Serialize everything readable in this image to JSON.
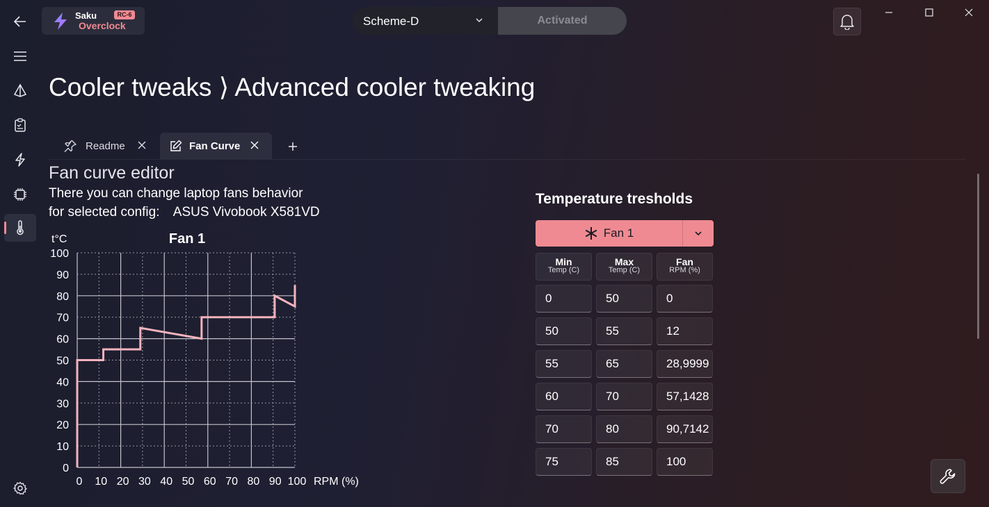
{
  "app": {
    "name": "Saku",
    "subtitle": "Overclock",
    "version_badge": "RC-6"
  },
  "header": {
    "scheme_value": "Scheme-D",
    "activated_label": "Activated"
  },
  "page": {
    "title": "Cooler tweaks ⟩ Advanced cooler tweaking"
  },
  "tabs": [
    {
      "label": "Readme",
      "icon": "pin-icon",
      "active": false
    },
    {
      "label": "Fan Curve",
      "icon": "edit-icon",
      "active": true
    }
  ],
  "editor": {
    "title": "Fan curve editor",
    "description_line1": "There you can change laptop fans behavior",
    "description_prefix": "for selected config:",
    "config_name": "ASUS Vivobook X581VD"
  },
  "chart_data": {
    "type": "line",
    "title": "Fan 1",
    "xlabel": "RPM (%)",
    "ylabel": "t°C",
    "xlim": [
      0,
      100
    ],
    "ylim": [
      0,
      100
    ],
    "x_ticks": [
      0,
      10,
      20,
      30,
      40,
      50,
      60,
      70,
      80,
      90,
      100
    ],
    "y_ticks": [
      0,
      10,
      20,
      30,
      40,
      50,
      60,
      70,
      80,
      90,
      100
    ],
    "grid": true,
    "line_color": "#f4b3bd",
    "series": [
      {
        "points": [
          [
            0,
            0
          ],
          [
            0,
            50
          ],
          [
            12,
            50
          ],
          [
            12,
            55
          ],
          [
            29,
            55
          ],
          [
            29,
            65
          ],
          [
            57.1428,
            60
          ],
          [
            57.1428,
            70
          ],
          [
            90.7142,
            70
          ],
          [
            90.7142,
            80
          ],
          [
            100,
            75
          ],
          [
            100,
            85
          ]
        ]
      }
    ]
  },
  "thresholds": {
    "title": "Temperature tresholds",
    "fan_selector": "Fan 1",
    "columns": [
      {
        "title": "Min",
        "subtitle": "Temp (C)"
      },
      {
        "title": "Max",
        "subtitle": "Temp (C)"
      },
      {
        "title": "Fan",
        "subtitle": "RPM (%)"
      }
    ],
    "rows": [
      [
        "0",
        "50",
        "0"
      ],
      [
        "50",
        "55",
        "12"
      ],
      [
        "55",
        "65",
        "28,9999"
      ],
      [
        "60",
        "70",
        "57,1428"
      ],
      [
        "70",
        "80",
        "90,7142"
      ],
      [
        "75",
        "85",
        "100"
      ]
    ]
  },
  "colors": {
    "accent": "#ef8a92",
    "curve": "#f4b3bd"
  }
}
